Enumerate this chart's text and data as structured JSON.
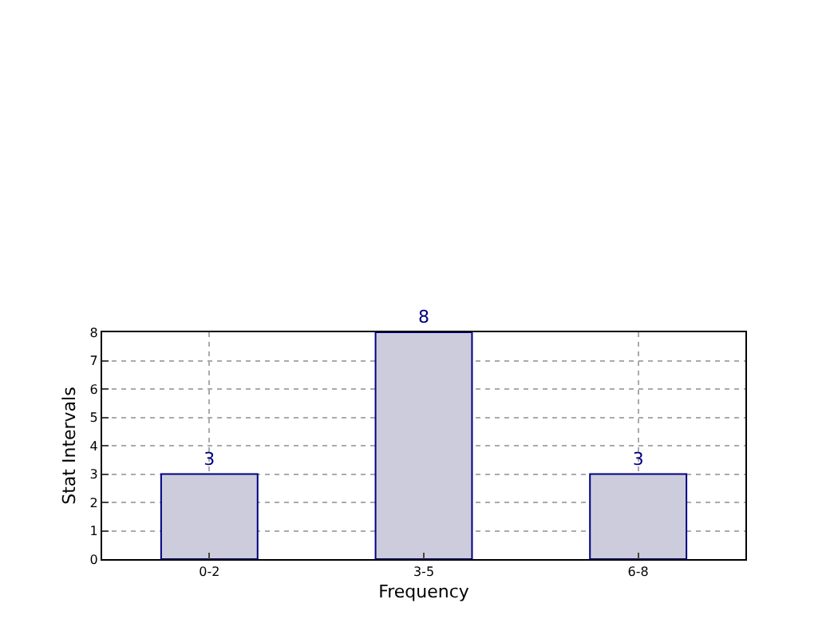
{
  "chart_data": {
    "type": "bar",
    "xlabel": "Frequency",
    "ylabel": "Stat Intervals",
    "categories": [
      "0-2",
      "3-5",
      "6-8"
    ],
    "values": [
      3,
      8,
      3
    ],
    "color": "#ccccdd",
    "ylim": [
      0,
      8
    ],
    "yticks": [
      0,
      1,
      2,
      3,
      4,
      5,
      6,
      7,
      8
    ],
    "grid": true,
    "data_labels": true
  }
}
